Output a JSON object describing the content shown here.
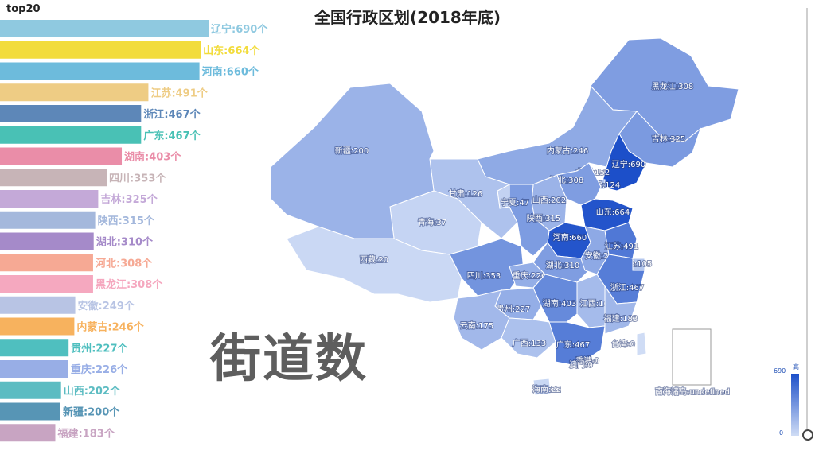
{
  "chart_data": [
    {
      "type": "bar",
      "title": "top20",
      "categories": [
        "辽宁",
        "山东",
        "河南",
        "江苏",
        "浙江",
        "广东",
        "湖南",
        "四川",
        "吉林",
        "陕西",
        "湖北",
        "河北",
        "黑龙江",
        "安徽",
        "内蒙古",
        "贵州",
        "重庆",
        "山西",
        "新疆",
        "福建"
      ],
      "values": [
        690,
        664,
        660,
        491,
        467,
        467,
        403,
        353,
        325,
        315,
        310,
        308,
        308,
        249,
        246,
        227,
        226,
        202,
        200,
        183
      ],
      "colors": [
        "#8fc9e0",
        "#f2dc3c",
        "#6dbbdc",
        "#eecc84",
        "#5d87b8",
        "#49c1b5",
        "#ea8da8",
        "#c7b4b7",
        "#c4a9d8",
        "#a4b8dc",
        "#a58ac9",
        "#f6a994",
        "#f5a8bf",
        "#b8c4e4",
        "#f7b25e",
        "#4fbfbf",
        "#98aee6",
        "#5cbcc2",
        "#5795b5",
        "#c8a4c2"
      ],
      "value_suffix": "个",
      "separator": ":"
    },
    {
      "type": "map",
      "title": "全国行政区划(2018年底)",
      "metric": "街道数",
      "legend": {
        "max": "690",
        "min": "0",
        "high_label": "高"
      },
      "regions": [
        {
          "name": "黑龙江",
          "value": "308"
        },
        {
          "name": "吉林",
          "value": "325"
        },
        {
          "name": "辽宁",
          "value": "690"
        },
        {
          "name": "内蒙古",
          "value": "246"
        },
        {
          "name": "北京",
          "value": "152"
        },
        {
          "name": "天津",
          "value": "124"
        },
        {
          "name": "河北",
          "value": "308"
        },
        {
          "name": "山西",
          "value": "202"
        },
        {
          "name": "山东",
          "value": "664"
        },
        {
          "name": "河南",
          "value": "660"
        },
        {
          "name": "陕西",
          "value": "315"
        },
        {
          "name": "宁夏",
          "value": "47"
        },
        {
          "name": "甘肃",
          "value": "126"
        },
        {
          "name": "青海",
          "value": "37"
        },
        {
          "name": "新疆",
          "value": "200"
        },
        {
          "name": "西藏",
          "value": "20"
        },
        {
          "name": "四川",
          "value": "353"
        },
        {
          "name": "重庆",
          "value": "226"
        },
        {
          "name": "湖北",
          "value": "310"
        },
        {
          "name": "安徽",
          "value": "249"
        },
        {
          "name": "江苏",
          "value": "491"
        },
        {
          "name": "上海",
          "value": "105"
        },
        {
          "name": "浙江",
          "value": "467"
        },
        {
          "name": "江西",
          "value": "162"
        },
        {
          "name": "湖南",
          "value": "403"
        },
        {
          "name": "贵州",
          "value": "227"
        },
        {
          "name": "云南",
          "value": "175"
        },
        {
          "name": "广西",
          "value": "133"
        },
        {
          "name": "广东",
          "value": "467"
        },
        {
          "name": "福建",
          "value": "183"
        },
        {
          "name": "台湾",
          "value": "0"
        },
        {
          "name": "海南",
          "value": "22"
        },
        {
          "name": "香港",
          "value": "0"
        },
        {
          "name": "澳门",
          "value": "0"
        },
        {
          "name": "南海诸岛",
          "value": "undefined"
        }
      ]
    }
  ],
  "colors": {
    "map_low": "#cfdcf5",
    "map_high": "#1c4fc9",
    "title": "#222222",
    "metric": "#5e5e5e"
  }
}
